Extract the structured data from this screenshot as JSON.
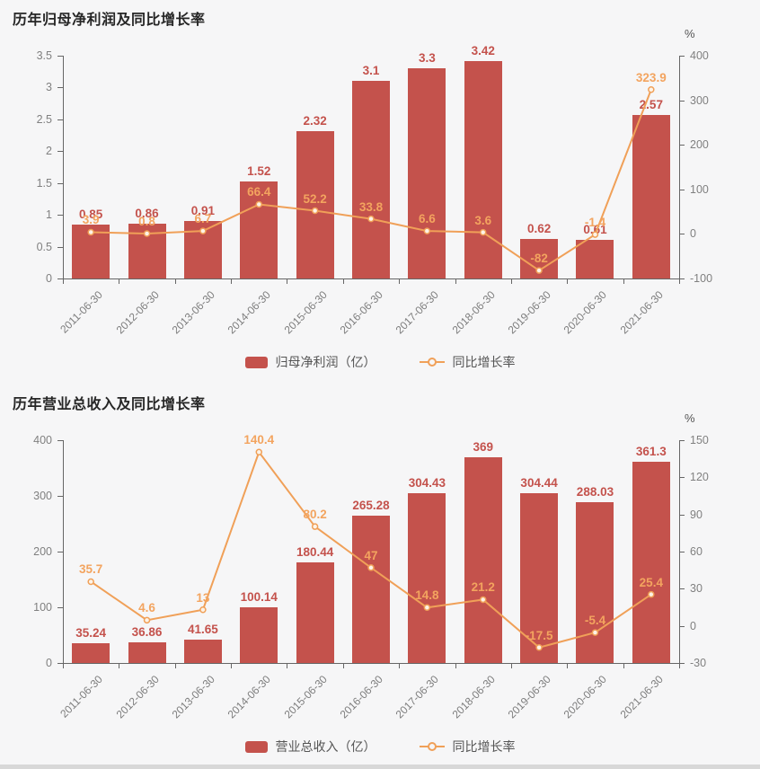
{
  "ui": {
    "background": "#f6f6f7",
    "bar_color": "#c4524c",
    "line_color": "#f0a058",
    "bar_label_color": "#c4524c",
    "line_label_color": "#f3a45f",
    "axis_line_color": "#666666",
    "axis_label_color": "#808080",
    "title_color": "#262626",
    "legend_text_color": "#555555"
  },
  "chart_data": [
    {
      "type": "bar",
      "title": "历年归母净利润及同比增长率",
      "categories": [
        "2011-06-30",
        "2012-06-30",
        "2013-06-30",
        "2014-06-30",
        "2015-06-30",
        "2016-06-30",
        "2017-06-30",
        "2018-06-30",
        "2019-06-30",
        "2020-06-30",
        "2021-06-30"
      ],
      "series": [
        {
          "name": "归母净利润（亿）",
          "type": "bar",
          "axis": "left",
          "values": [
            0.85,
            0.86,
            0.91,
            1.52,
            2.32,
            3.1,
            3.3,
            3.42,
            0.62,
            0.61,
            2.57
          ]
        },
        {
          "name": "同比增长率",
          "type": "line",
          "axis": "right",
          "values": [
            3.9,
            0.8,
            6.7,
            66.4,
            52.2,
            33.8,
            6.6,
            3.6,
            -82,
            -1.4,
            323.9
          ]
        }
      ],
      "left_axis": {
        "min": 0,
        "max": 3.5,
        "ticks": [
          "0",
          "0.5",
          "1",
          "1.5",
          "2",
          "2.5",
          "3",
          "3.5"
        ]
      },
      "right_axis": {
        "min": -100,
        "max": 400,
        "ticks": [
          "-100",
          "0",
          "100",
          "200",
          "300",
          "400"
        ],
        "unit": "%"
      },
      "legend_position": "bottom",
      "grid": false
    },
    {
      "type": "bar",
      "title": "历年营业总收入及同比增长率",
      "categories": [
        "2011-06-30",
        "2012-06-30",
        "2013-06-30",
        "2014-06-30",
        "2015-06-30",
        "2016-06-30",
        "2017-06-30",
        "2018-06-30",
        "2019-06-30",
        "2020-06-30",
        "2021-06-30"
      ],
      "series": [
        {
          "name": "营业总收入（亿）",
          "type": "bar",
          "axis": "left",
          "values": [
            35.24,
            36.86,
            41.65,
            100.14,
            180.44,
            265.28,
            304.43,
            369,
            304.44,
            288.03,
            361.3
          ]
        },
        {
          "name": "同比增长率",
          "type": "line",
          "axis": "right",
          "values": [
            35.7,
            4.6,
            13,
            140.4,
            80.2,
            47,
            14.8,
            21.2,
            -17.5,
            -5.4,
            25.4
          ]
        }
      ],
      "left_axis": {
        "min": 0,
        "max": 400,
        "ticks": [
          "0",
          "100",
          "200",
          "300",
          "400"
        ]
      },
      "right_axis": {
        "min": -30,
        "max": 150,
        "ticks": [
          "-30",
          "0",
          "30",
          "60",
          "90",
          "120",
          "150"
        ],
        "unit": "%"
      },
      "legend_position": "bottom",
      "grid": false
    }
  ]
}
